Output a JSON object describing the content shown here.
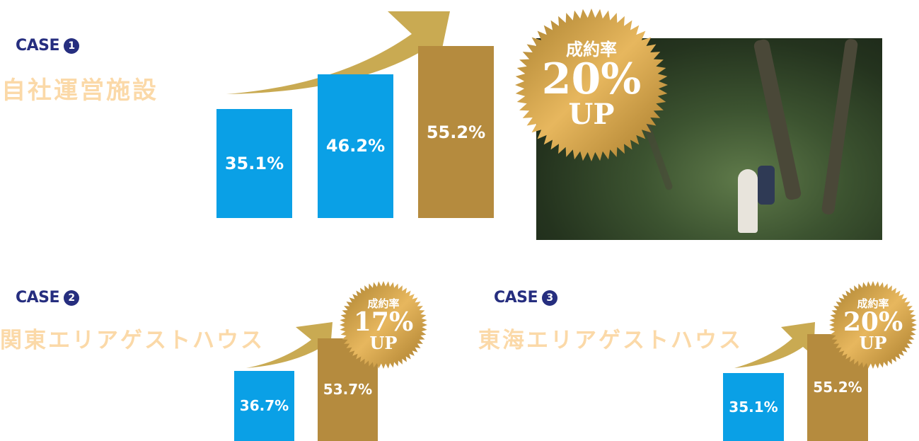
{
  "colors": {
    "before": "#0aa0e6",
    "after": "#b58b3e",
    "case_label": "#262e7f",
    "title": "#fbd9a8",
    "arrow": "#c9aa52"
  },
  "chart_data": [
    {
      "type": "bar",
      "case_label": "CASE",
      "case_number": "1",
      "title": "自社運営施設",
      "values": [
        35.1,
        46.2,
        55.2
      ],
      "labels": [
        "35.1%",
        "46.2%",
        "55.2%"
      ],
      "badge": {
        "line1": "成約率",
        "line2": "20%",
        "line3": "UP"
      }
    },
    {
      "type": "bar",
      "case_label": "CASE",
      "case_number": "2",
      "title": "関東エリアゲストハウス",
      "values": [
        36.7,
        53.7
      ],
      "labels": [
        "36.7%",
        "53.7%"
      ],
      "badge": {
        "line1": "成約率",
        "line2": "17%",
        "line3": "UP"
      }
    },
    {
      "type": "bar",
      "case_label": "CASE",
      "case_number": "3",
      "title": "東海エリアゲストハウス",
      "values": [
        35.1,
        55.2
      ],
      "labels": [
        "35.1%",
        "55.2%"
      ],
      "badge": {
        "line1": "成約率",
        "line2": "20%",
        "line3": "UP"
      }
    }
  ]
}
